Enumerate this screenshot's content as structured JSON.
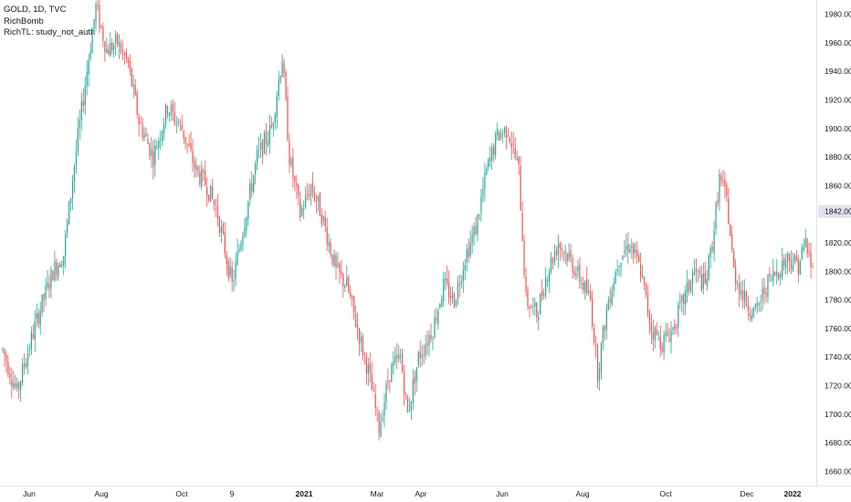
{
  "legend": {
    "symbol": "GOLD, 1D, TVC",
    "study1": "RichBomb",
    "study2": "RichTL: study_not_auth"
  },
  "colors": {
    "up": "#26a69a",
    "down": "#ef5350",
    "wick_up": "#26a69a",
    "wick_down": "#ef5350",
    "shadow": "#b2b5be",
    "axis": "#e0e3eb",
    "last_price_bg": "#e0e3eb"
  },
  "chart_data": {
    "type": "candlestick",
    "y_axis_ticks": [
      1660,
      1680,
      1700,
      1720,
      1740,
      1760,
      1780,
      1800,
      1820,
      1860,
      1880,
      1900,
      1920,
      1940,
      1960,
      1980
    ],
    "ylim": [
      1650,
      1990
    ],
    "last_price": "1842.00",
    "x_ticks": [
      {
        "label": "Jun",
        "bold": false
      },
      {
        "label": "Aug",
        "bold": false
      },
      {
        "label": "Oct",
        "bold": false
      },
      {
        "label": "9",
        "bold": false
      },
      {
        "label": "2021",
        "bold": true
      },
      {
        "label": "Mar",
        "bold": false
      },
      {
        "label": "Apr",
        "bold": false
      },
      {
        "label": "Jun",
        "bold": false
      },
      {
        "label": "Aug",
        "bold": false
      },
      {
        "label": "Oct",
        "bold": false
      },
      {
        "label": "Dec",
        "bold": false
      },
      {
        "label": "2022",
        "bold": true
      }
    ],
    "trend_anchors": [
      [
        0,
        1745
      ],
      [
        8,
        1715
      ],
      [
        12,
        1735
      ],
      [
        20,
        1770
      ],
      [
        28,
        1800
      ],
      [
        34,
        1812
      ],
      [
        40,
        1875
      ],
      [
        48,
        1950
      ],
      [
        52,
        1985
      ],
      [
        58,
        1955
      ],
      [
        64,
        1960
      ],
      [
        70,
        1945
      ],
      [
        76,
        1905
      ],
      [
        84,
        1880
      ],
      [
        92,
        1915
      ],
      [
        100,
        1900
      ],
      [
        108,
        1870
      ],
      [
        114,
        1860
      ],
      [
        120,
        1840
      ],
      [
        128,
        1790
      ],
      [
        134,
        1830
      ],
      [
        142,
        1880
      ],
      [
        150,
        1900
      ],
      [
        156,
        1950
      ],
      [
        160,
        1880
      ],
      [
        166,
        1840
      ],
      [
        172,
        1860
      ],
      [
        178,
        1840
      ],
      [
        186,
        1800
      ],
      [
        192,
        1790
      ],
      [
        198,
        1760
      ],
      [
        204,
        1730
      ],
      [
        210,
        1690
      ],
      [
        216,
        1730
      ],
      [
        222,
        1740
      ],
      [
        226,
        1700
      ],
      [
        232,
        1740
      ],
      [
        240,
        1760
      ],
      [
        246,
        1790
      ],
      [
        252,
        1780
      ],
      [
        258,
        1810
      ],
      [
        264,
        1830
      ],
      [
        270,
        1870
      ],
      [
        276,
        1895
      ],
      [
        282,
        1900
      ],
      [
        288,
        1870
      ],
      [
        292,
        1780
      ],
      [
        298,
        1770
      ],
      [
        304,
        1800
      ],
      [
        310,
        1820
      ],
      [
        316,
        1810
      ],
      [
        322,
        1795
      ],
      [
        328,
        1780
      ],
      [
        332,
        1730
      ],
      [
        338,
        1780
      ],
      [
        344,
        1810
      ],
      [
        350,
        1820
      ],
      [
        356,
        1800
      ],
      [
        362,
        1760
      ],
      [
        368,
        1750
      ],
      [
        374,
        1760
      ],
      [
        380,
        1780
      ],
      [
        386,
        1800
      ],
      [
        392,
        1790
      ],
      [
        396,
        1820
      ],
      [
        400,
        1865
      ],
      [
        404,
        1850
      ],
      [
        408,
        1800
      ],
      [
        414,
        1780
      ],
      [
        420,
        1770
      ],
      [
        426,
        1790
      ],
      [
        432,
        1800
      ],
      [
        438,
        1810
      ],
      [
        444,
        1805
      ],
      [
        448,
        1820
      ],
      [
        452,
        1800
      ]
    ]
  }
}
